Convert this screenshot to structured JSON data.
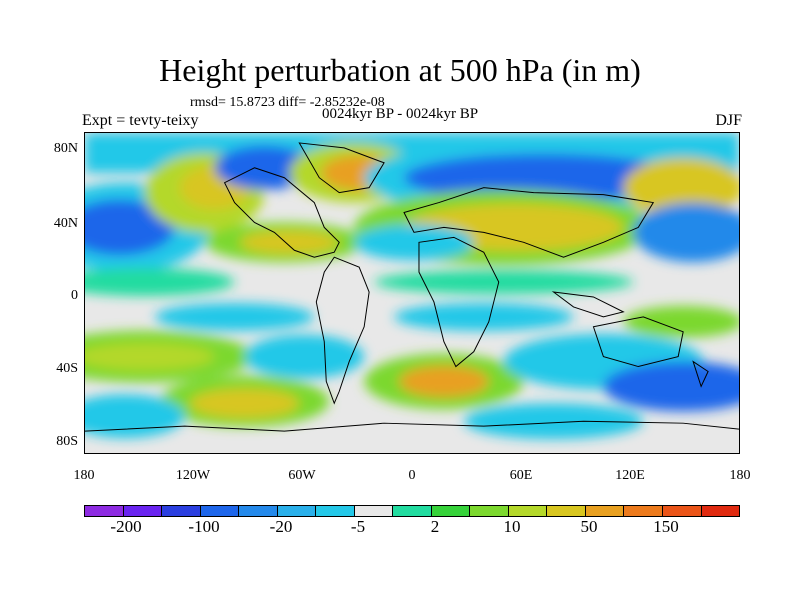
{
  "title": "Height perturbation at 500 hPa (in m)",
  "stats": "rmsd= 15.8723 diff= -2.85232e-08",
  "period": "0024kyr BP - 0024kyr BP",
  "expt": "Expt = tevty-teixy",
  "season": "DJF",
  "y_ticks": [
    "80N",
    "40N",
    "0",
    "40S",
    "80S"
  ],
  "x_ticks": [
    "180",
    "120W",
    "60W",
    "0",
    "60E",
    "120E",
    "180"
  ],
  "colorbar": {
    "colors": [
      "#8e2be2",
      "#6a24f0",
      "#2b3fe0",
      "#1e66ea",
      "#2489ea",
      "#2ab0ea",
      "#24c8e8",
      "#e8e8e8",
      "#22dca0",
      "#36d23a",
      "#7cd82e",
      "#b4d82a",
      "#d8c620",
      "#e8a020",
      "#ec7a1c",
      "#ea5418",
      "#e02a10"
    ],
    "labels": [
      "-200",
      "-100",
      "-20",
      "-5",
      "2",
      "10",
      "50",
      "150"
    ]
  }
}
